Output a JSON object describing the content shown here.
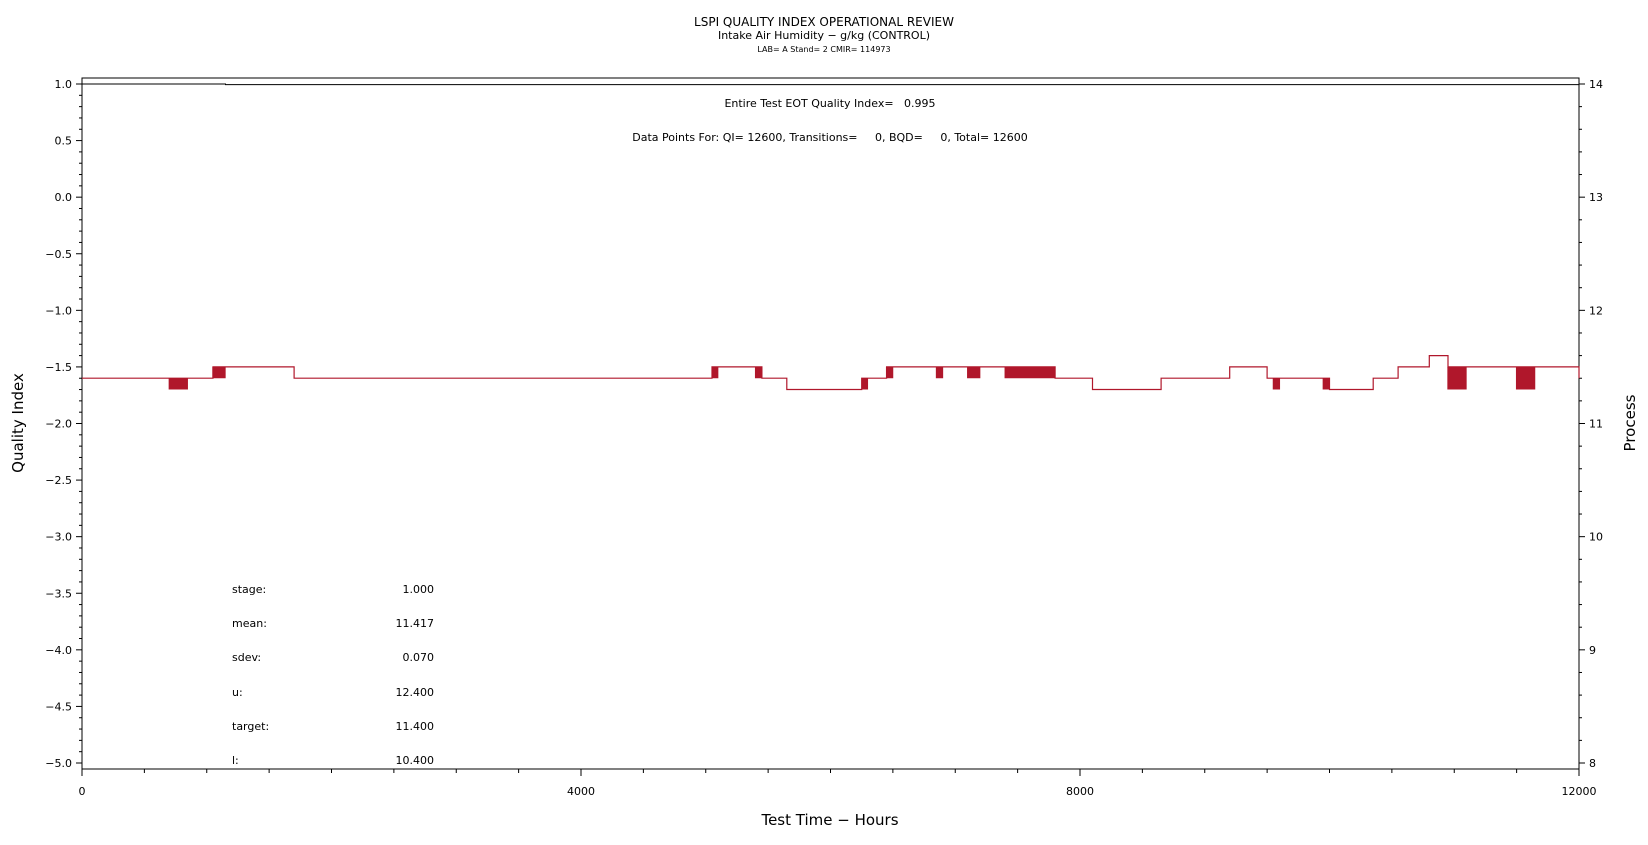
{
  "chart_data": {
    "type": "line",
    "title": "LSPI QUALITY INDEX OPERATIONAL REVIEW",
    "subtitle": "Intake Air Humidity − g/kg (CONTROL)",
    "subtitle2": "LAB= A Stand= 2 CMIR= 114973",
    "xlabel": "Test Time − Hours",
    "ylabel": "Quality Index",
    "y2label": "Process",
    "xlim": [
      0,
      12000
    ],
    "ylim": [
      -5.0,
      1.0
    ],
    "y2lim": [
      8,
      14
    ],
    "x_ticks": [
      "0",
      "4000",
      "8000",
      "12000"
    ],
    "y_ticks": [
      "1.0",
      "0.5",
      "0.0",
      "−0.5",
      "−1.0",
      "−1.5",
      "−2.0",
      "−2.5",
      "−3.0",
      "−3.5",
      "−4.0",
      "−4.5",
      "−5.0"
    ],
    "y2_ticks": [
      "14",
      "13",
      "12",
      "11",
      "10",
      "9",
      "8"
    ],
    "annotations": {
      "eot": "Entire Test EOT Quality Index=   0.995",
      "points": "Data Points For: QI= 12600, Transitions=     0, BQD=     0, Total= 12600"
    },
    "stats": [
      {
        "label": "stage:",
        "value": "1.000"
      },
      {
        "label": "mean:",
        "value": "11.417"
      },
      {
        "label": "sdev:",
        "value": "0.070"
      },
      {
        "label": "u:",
        "value": "12.400"
      },
      {
        "label": "target:",
        "value": "11.400"
      },
      {
        "label": "l:",
        "value": "10.400"
      }
    ],
    "series": [
      {
        "axis": "left",
        "color": "#000000",
        "x": [
          0,
          1150,
          1150,
          12000
        ],
        "y": [
          1.0,
          1.0,
          0.995,
          0.995
        ]
      },
      {
        "axis": "right",
        "color": "#b0172b",
        "step_x": [
          0,
          1050,
          1700,
          5050,
          5450,
          5650,
          6250,
          6450,
          7800,
          8100,
          8650,
          9200,
          9500,
          10000,
          10350,
          10550,
          10800,
          10950,
          12000
        ],
        "step_y": [
          11.4,
          11.5,
          11.4,
          11.5,
          11.4,
          11.3,
          11.4,
          11.5,
          11.4,
          11.3,
          11.4,
          11.5,
          11.4,
          11.3,
          11.4,
          11.5,
          11.6,
          11.5,
          11.4
        ],
        "noise_ranges": [
          [
            700,
            850,
            11.3
          ],
          [
            1050,
            1150,
            11.4
          ],
          [
            1850,
            2100,
            11.4
          ],
          [
            2600,
            2750,
            11.4
          ],
          [
            2950,
            3450,
            11.4
          ],
          [
            5000,
            5100,
            11.4
          ],
          [
            5400,
            5500,
            11.4
          ],
          [
            5750,
            5800,
            11.3
          ],
          [
            6200,
            6300,
            11.3
          ],
          [
            6450,
            6500,
            11.4
          ],
          [
            6850,
            6900,
            11.4
          ],
          [
            7100,
            7200,
            11.4
          ],
          [
            7400,
            7800,
            11.4
          ],
          [
            8100,
            8300,
            11.3
          ],
          [
            8700,
            8800,
            11.4
          ],
          [
            9550,
            9600,
            11.3
          ],
          [
            9950,
            10050,
            11.3
          ],
          [
            10950,
            11100,
            11.3
          ],
          [
            11500,
            11650,
            11.3
          ]
        ]
      }
    ]
  }
}
